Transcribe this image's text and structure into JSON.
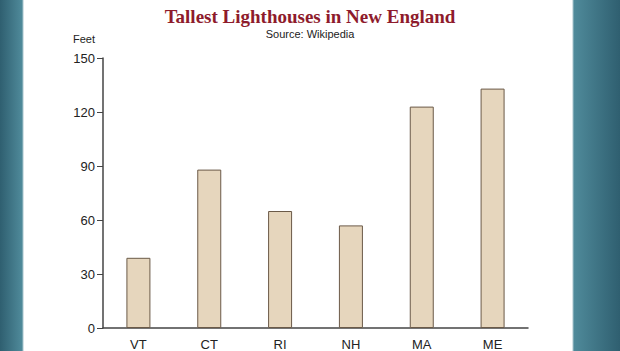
{
  "chart_data": {
    "type": "bar",
    "title": "Tallest Lighthouses in New England",
    "subtitle": "Source: Wikipedia",
    "y_label": "Feet",
    "categories": [
      "VT",
      "CT",
      "RI",
      "NH",
      "MA",
      "ME"
    ],
    "values": [
      39,
      88,
      65,
      57,
      123,
      133
    ],
    "color": "#e6d6bd",
    "ylim": [
      0,
      150
    ],
    "yticks": [
      0,
      30,
      60,
      90,
      120,
      150
    ],
    "grid": false
  }
}
